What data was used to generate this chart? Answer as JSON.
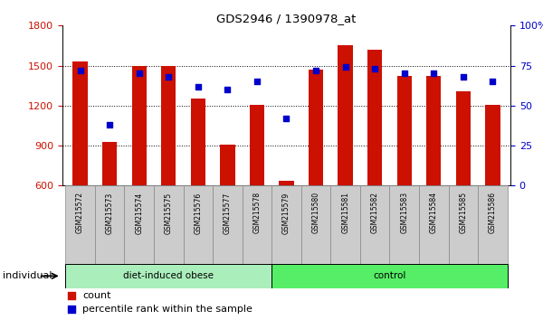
{
  "title": "GDS2946 / 1390978_at",
  "samples": [
    "GSM215572",
    "GSM215573",
    "GSM215574",
    "GSM215575",
    "GSM215576",
    "GSM215577",
    "GSM215578",
    "GSM215579",
    "GSM215580",
    "GSM215581",
    "GSM215582",
    "GSM215583",
    "GSM215584",
    "GSM215585",
    "GSM215586"
  ],
  "counts": [
    1530,
    930,
    1500,
    1500,
    1250,
    905,
    1205,
    635,
    1470,
    1650,
    1620,
    1420,
    1420,
    1305,
    1205
  ],
  "percentile_ranks": [
    72,
    38,
    70,
    68,
    62,
    60,
    65,
    42,
    72,
    74,
    73,
    70,
    70,
    68,
    65
  ],
  "bar_bottom": 600,
  "ylim_left": [
    600,
    1800
  ],
  "ylim_right": [
    0,
    100
  ],
  "yticks_left": [
    600,
    900,
    1200,
    1500,
    1800
  ],
  "yticks_right": [
    0,
    25,
    50,
    75,
    100
  ],
  "bar_color": "#cc1100",
  "dot_color": "#0000cc",
  "grid_color": "#000000",
  "group1_label": "diet-induced obese",
  "group2_label": "control",
  "group1_color": "#aaeebb",
  "group2_color": "#55ee66",
  "n_group1": 7,
  "n_group2": 8,
  "legend_count_label": "count",
  "legend_pct_label": "percentile rank within the sample",
  "individual_label": "individual",
  "bg_color": "#ffffff",
  "plot_bg_color": "#ffffff",
  "tick_label_color_left": "#cc1100",
  "tick_label_color_right": "#0000cc",
  "title_color": "#000000",
  "xtick_bg": "#cccccc",
  "xtick_border": "#888888"
}
